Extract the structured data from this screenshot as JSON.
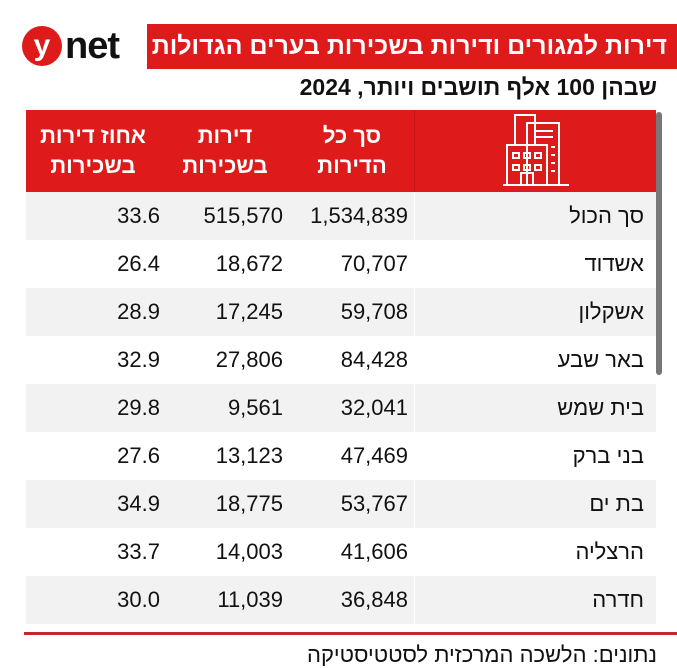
{
  "logo": {
    "y": "y",
    "net": "net"
  },
  "title": "דירות למגורים ודירות בשכירות בערים הגדולות",
  "subtitle": "שבהן 100 אלף תושבים ויותר, 2024",
  "headers": {
    "icon": "building-icon",
    "total": "סך כל הדירות",
    "rentals": "דירות בשכירות",
    "percent": "אחוז דירות בשכירות"
  },
  "rows": [
    {
      "city": "סך הכול",
      "total": "1,534,839",
      "rentals": "515,570",
      "percent": "33.6"
    },
    {
      "city": "אשדוד",
      "total": "70,707",
      "rentals": "18,672",
      "percent": "26.4"
    },
    {
      "city": "אשקלון",
      "total": "59,708",
      "rentals": "17,245",
      "percent": "28.9"
    },
    {
      "city": "באר שבע",
      "total": "84,428",
      "rentals": "27,806",
      "percent": "32.9"
    },
    {
      "city": "בית שמש",
      "total": "32,041",
      "rentals": "9,561",
      "percent": "29.8"
    },
    {
      "city": "בני ברק",
      "total": "47,469",
      "rentals": "13,123",
      "percent": "27.6"
    },
    {
      "city": "בת ים",
      "total": "53,767",
      "rentals": "18,775",
      "percent": "34.9"
    },
    {
      "city": "הרצליה",
      "total": "41,606",
      "rentals": "14,003",
      "percent": "33.7"
    },
    {
      "city": "חדרה",
      "total": "36,848",
      "rentals": "11,039",
      "percent": "30.0"
    }
  ],
  "source": "נתונים: הלשכה המרכזית לסטטיסטיקה",
  "colors": {
    "accent": "#de1a1a",
    "stripe": "#f2f2f2"
  }
}
